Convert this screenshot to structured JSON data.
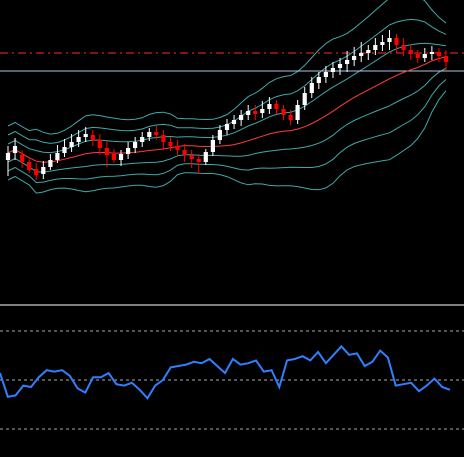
{
  "chart_data": [
    {
      "type": "candlestick",
      "panel": "price",
      "colors": {
        "background": "#000000",
        "up": "#ffffff",
        "down": "#ff0000",
        "band": "#3fa9a9",
        "horizontal_line": "#a8c8e8",
        "dashed_level": "#ff2a2a",
        "moving_average": "#ff3b3b"
      },
      "ylim": [
        0,
        300
      ],
      "dashed_level": 247,
      "horizontal_line": 229,
      "candles": [
        [
          140,
          147,
          124,
          154
        ],
        [
          147,
          154,
          140,
          162
        ],
        [
          145,
          138,
          132,
          150
        ],
        [
          138,
          130,
          127,
          141
        ],
        [
          131,
          125,
          120,
          137
        ],
        [
          126,
          133,
          121,
          139
        ],
        [
          133,
          140,
          130,
          146
        ],
        [
          140,
          147,
          137,
          155
        ],
        [
          147,
          153,
          143,
          161
        ],
        [
          153,
          158,
          148,
          166
        ],
        [
          158,
          163,
          153,
          170
        ],
        [
          163,
          166,
          158,
          173
        ],
        [
          165,
          160,
          154,
          170
        ],
        [
          160,
          152,
          145,
          166
        ],
        [
          152,
          145,
          133,
          159
        ],
        [
          146,
          140,
          137,
          151
        ],
        [
          140,
          146,
          134,
          150
        ],
        [
          146,
          152,
          141,
          158
        ],
        [
          152,
          158,
          147,
          163
        ],
        [
          158,
          163,
          153,
          168
        ],
        [
          163,
          168,
          159,
          172
        ],
        [
          168,
          165,
          160,
          174
        ],
        [
          165,
          158,
          150,
          170
        ],
        [
          158,
          154,
          149,
          163
        ],
        [
          154,
          150,
          145,
          160
        ],
        [
          150,
          145,
          138,
          156
        ],
        [
          145,
          141,
          132,
          150
        ],
        [
          141,
          138,
          126,
          146
        ],
        [
          138,
          148,
          135,
          151
        ],
        [
          148,
          160,
          144,
          165
        ],
        [
          160,
          170,
          156,
          175
        ],
        [
          170,
          176,
          165,
          181
        ],
        [
          176,
          180,
          171,
          185
        ],
        [
          180,
          185,
          174,
          190
        ],
        [
          185,
          189,
          180,
          195
        ],
        [
          189,
          186,
          180,
          195
        ],
        [
          187,
          191,
          182,
          199
        ],
        [
          191,
          196,
          186,
          203
        ],
        [
          196,
          191,
          186,
          200
        ],
        [
          191,
          185,
          180,
          195
        ],
        [
          185,
          180,
          175,
          190
        ],
        [
          180,
          195,
          176,
          200
        ],
        [
          195,
          207,
          190,
          213
        ],
        [
          207,
          217,
          202,
          223
        ],
        [
          217,
          223,
          211,
          228
        ],
        [
          223,
          228,
          217,
          234
        ],
        [
          228,
          232,
          222,
          238
        ],
        [
          232,
          236,
          225,
          242
        ],
        [
          236,
          240,
          228,
          249
        ],
        [
          240,
          244,
          234,
          253
        ],
        [
          244,
          247,
          238,
          258
        ],
        [
          247,
          250,
          240,
          255
        ],
        [
          250,
          255,
          245,
          262
        ],
        [
          255,
          258,
          249,
          265
        ],
        [
          258,
          262,
          250,
          270
        ],
        [
          262,
          255,
          247,
          266
        ],
        [
          255,
          250,
          244,
          262
        ],
        [
          250,
          246,
          240,
          256
        ],
        [
          246,
          242,
          237,
          250
        ],
        [
          242,
          246,
          238,
          252
        ],
        [
          246,
          248,
          240,
          254
        ],
        [
          248,
          244,
          238,
          252
        ],
        [
          244,
          238,
          230,
          250
        ]
      ]
    },
    {
      "type": "line",
      "panel": "oscillator",
      "ylim": [
        0,
        100
      ],
      "levels": [
        85,
        50,
        15
      ],
      "colors": {
        "line": "#2f7fff",
        "levels": "#aaaaaa",
        "separator": "#cccccc"
      },
      "values": [
        55,
        38,
        39,
        46,
        45,
        52,
        57,
        56,
        57,
        53,
        44,
        41,
        52,
        52,
        55,
        47,
        46,
        48,
        43,
        37,
        46,
        50,
        59,
        60,
        61,
        63,
        62,
        65,
        60,
        55,
        65,
        61,
        62,
        64,
        56,
        57,
        45,
        64,
        65,
        67,
        64,
        70,
        62,
        68,
        74,
        68,
        69,
        60,
        63,
        71,
        66,
        46,
        47,
        48,
        42,
        46,
        51,
        45,
        43
      ]
    }
  ]
}
